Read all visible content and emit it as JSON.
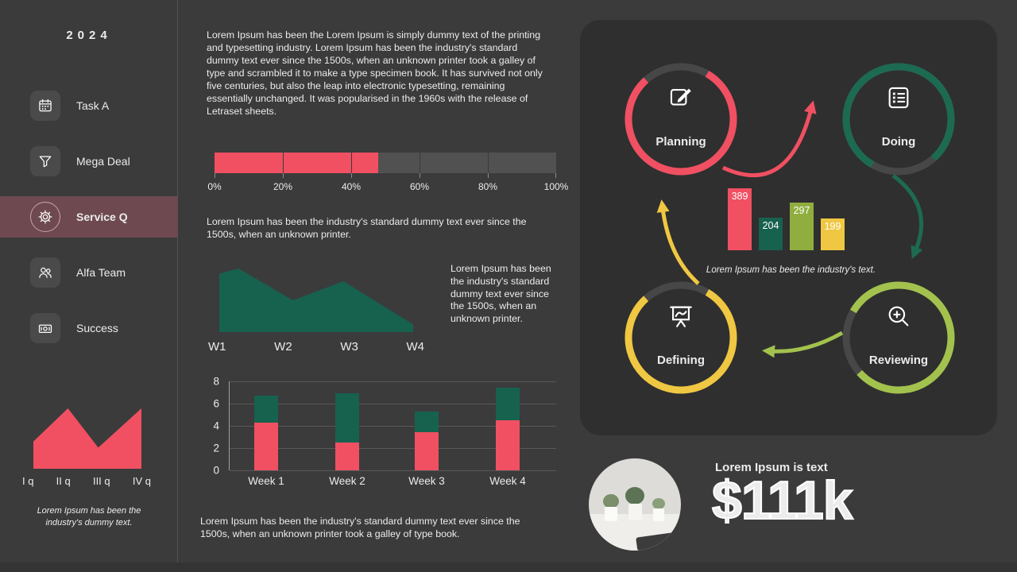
{
  "palette": {
    "pink": "#f05062",
    "dark_green": "#17614f",
    "olive": "#8fae3f",
    "yellow": "#f0c742",
    "light_green": "#a3c24d",
    "active_item_bg": "#6e4a50"
  },
  "sidebar": {
    "year": "2024",
    "items": [
      {
        "label": "Task A",
        "icon": "calendar-icon",
        "active": false
      },
      {
        "label": "Mega Deal",
        "icon": "funnel-icon",
        "active": false
      },
      {
        "label": "Service Q",
        "icon": "gear-icon",
        "active": true
      },
      {
        "label": "Alfa Team",
        "icon": "people-icon",
        "active": false
      },
      {
        "label": "Success",
        "icon": "money-icon",
        "active": false
      }
    ],
    "caption": "Lorem Ipsum has been the industry's dummy text."
  },
  "middle": {
    "intro": "Lorem Ipsum has been the Lorem Ipsum is simply dummy text of the printing and typesetting industry. Lorem Ipsum has been the industry's standard dummy text ever since the 1500s, when an unknown printer took a galley of type and scrambled it to make a type specimen book. It has survived not only five centuries, but also the leap into electronic typesetting, remaining essentially unchanged. It was popularised in the 1960s with the release of Letraset sheets.",
    "para2": "Lorem Ipsum has been the industry's standard dummy text ever since the 1500s, when an unknown printer.",
    "side_note": "Lorem Ipsum has been the industry's standard dummy text ever since the 1500s, when an unknown printer.",
    "footer": "Lorem Ipsum has been the industry's standard dummy text ever since the 1500s, when an unknown printer took a galley of type book."
  },
  "cycle": {
    "nodes": [
      {
        "label": "Planning",
        "icon": "edit-icon",
        "color": "#f05062"
      },
      {
        "label": "Doing",
        "icon": "checklist-icon",
        "color": "#1d6a52"
      },
      {
        "label": "Defining",
        "icon": "presentation-icon",
        "color": "#f0c742"
      },
      {
        "label": "Reviewing",
        "icon": "zoom-plus-icon",
        "color": "#a3c24d"
      }
    ],
    "caption": "Lorem Ipsum has been the industry's text."
  },
  "kpi": {
    "label": "Lorem Ipsum is text",
    "value": "$111k"
  },
  "chart_data": {
    "progress": {
      "type": "bar",
      "value_pct": 48,
      "xlim": [
        0,
        100
      ],
      "ticks": [
        "0%",
        "20%",
        "40%",
        "60%",
        "80%",
        "100%"
      ]
    },
    "weekly_area": {
      "type": "area",
      "categories": [
        "W1",
        "W2",
        "W3",
        "W4"
      ],
      "values_norm": [
        0.95,
        0.5,
        0.8,
        0.1
      ],
      "shape": [
        [
          0,
          0.92
        ],
        [
          0.1,
          1.0
        ],
        [
          0.38,
          0.5
        ],
        [
          0.64,
          0.8
        ],
        [
          1,
          0.12
        ]
      ],
      "color": "#17614f"
    },
    "weekly_stacked": {
      "type": "bar",
      "stacked": true,
      "categories": [
        "Week 1",
        "Week 2",
        "Week 3",
        "Week 4"
      ],
      "series": [
        {
          "name": "lower-segment",
          "color": "#f05062",
          "values": [
            4.3,
            2.5,
            3.4,
            4.5
          ]
        },
        {
          "name": "upper-segment",
          "color": "#17614f",
          "values": [
            2.4,
            4.4,
            1.9,
            2.9
          ]
        }
      ],
      "ylim": [
        0,
        8
      ],
      "yticks": [
        0,
        2,
        4,
        6,
        8
      ]
    },
    "cycle_bars": {
      "type": "bar",
      "values": [
        389,
        204,
        297,
        199
      ],
      "colors": [
        "#f05062",
        "#17614f",
        "#8fae3f",
        "#f0c742"
      ]
    },
    "quarterly_area": {
      "type": "area",
      "categories": [
        "I q",
        "II q",
        "III q",
        "IV q"
      ],
      "shape": [
        [
          0,
          0.45
        ],
        [
          0.32,
          1.0
        ],
        [
          0.6,
          0.35
        ],
        [
          1,
          1.0
        ]
      ],
      "color": "#f05062"
    }
  }
}
